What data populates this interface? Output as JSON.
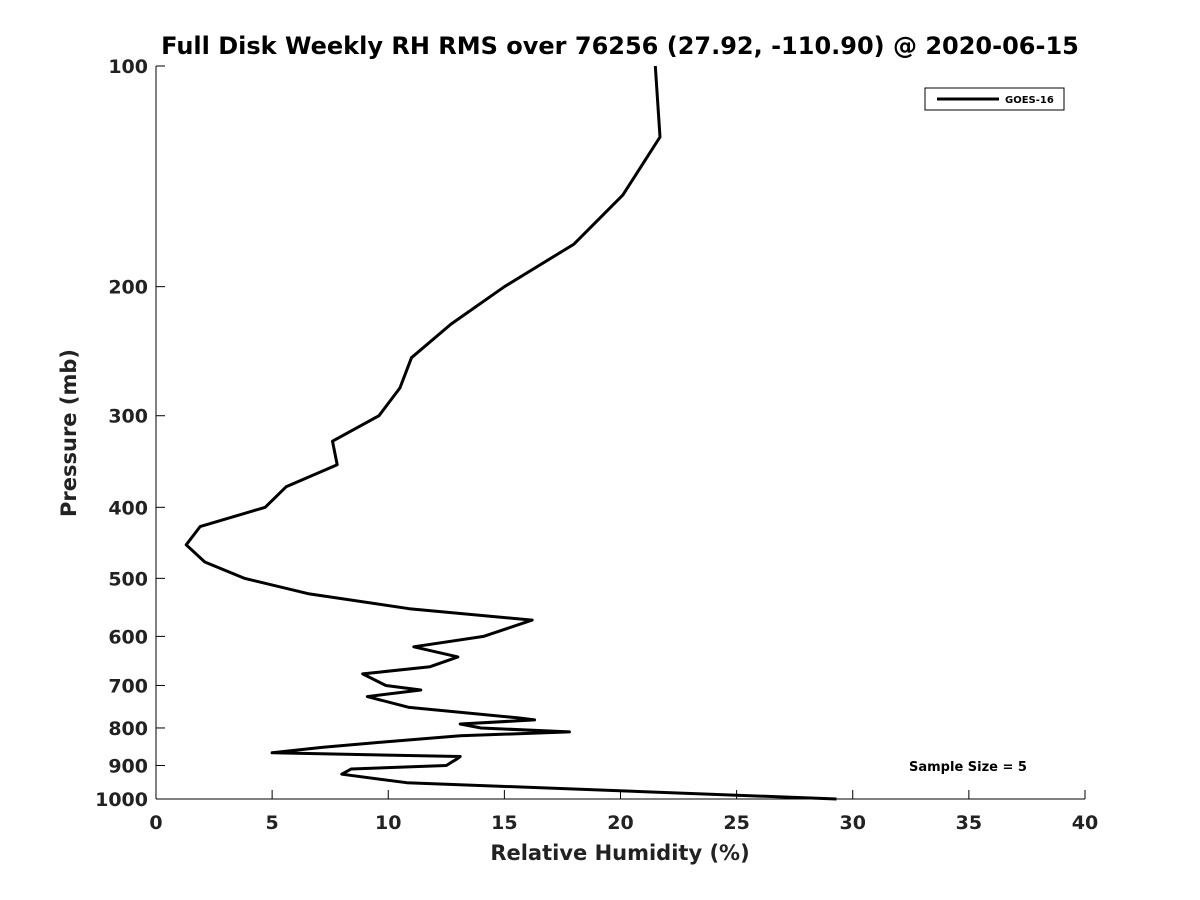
{
  "chart_data": {
    "type": "line",
    "title": "Full Disk Weekly RH RMS over 76256 (27.92, -110.90) @ 2020-06-15",
    "xlabel": "Relative Humidity (%)",
    "ylabel": "Pressure (mb)",
    "xlim": [
      0,
      40
    ],
    "ylim": [
      100,
      1000
    ],
    "yscale": "log",
    "y_reversed": true,
    "xticks": [
      0,
      5,
      10,
      15,
      20,
      25,
      30,
      35,
      40
    ],
    "yticks": [
      100,
      200,
      300,
      400,
      500,
      600,
      700,
      800,
      900,
      1000
    ],
    "grid": false,
    "legend_position": "top-right",
    "annotation": "Sample Size = 5",
    "series": [
      {
        "name": "GOES-16",
        "color": "#000000",
        "points": [
          [
            21.5,
            100
          ],
          [
            21.7,
            125
          ],
          [
            20.1,
            150
          ],
          [
            18.0,
            175
          ],
          [
            15.0,
            200
          ],
          [
            12.7,
            225
          ],
          [
            11.0,
            250
          ],
          [
            10.5,
            275
          ],
          [
            9.6,
            300
          ],
          [
            7.6,
            325
          ],
          [
            7.8,
            350
          ],
          [
            5.6,
            375
          ],
          [
            4.7,
            400
          ],
          [
            1.9,
            425
          ],
          [
            1.3,
            450
          ],
          [
            2.1,
            475
          ],
          [
            3.8,
            500
          ],
          [
            6.6,
            525
          ],
          [
            10.9,
            550
          ],
          [
            16.2,
            570
          ],
          [
            14.1,
            600
          ],
          [
            11.1,
            620
          ],
          [
            13.0,
            640
          ],
          [
            11.8,
            660
          ],
          [
            8.9,
            675
          ],
          [
            9.9,
            700
          ],
          [
            11.4,
            710
          ],
          [
            9.1,
            725
          ],
          [
            10.9,
            750
          ],
          [
            15.6,
            775
          ],
          [
            16.3,
            780
          ],
          [
            13.1,
            790
          ],
          [
            14.0,
            800
          ],
          [
            17.8,
            810
          ],
          [
            13.1,
            820
          ],
          [
            10.0,
            835
          ],
          [
            7.2,
            850
          ],
          [
            5.0,
            865
          ],
          [
            13.1,
            875
          ],
          [
            13.0,
            880
          ],
          [
            12.5,
            900
          ],
          [
            8.4,
            910
          ],
          [
            8.0,
            925
          ],
          [
            10.8,
            950
          ],
          [
            29.3,
            1000
          ]
        ]
      }
    ]
  }
}
